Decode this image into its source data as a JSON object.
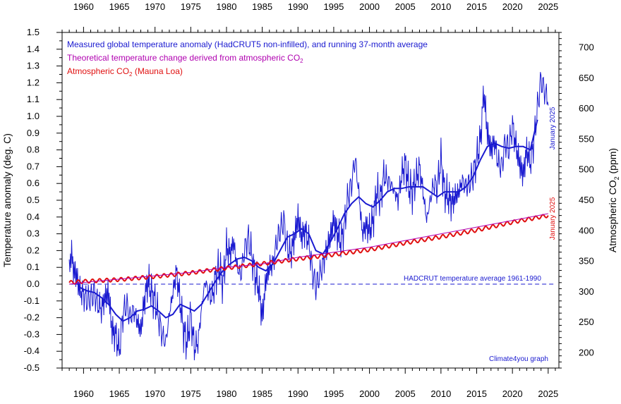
{
  "chart_data": {
    "type": "line",
    "x_label_ticks": [
      "1960",
      "1965",
      "1970",
      "1975",
      "1980",
      "1985",
      "1990",
      "1995",
      "2000",
      "2005",
      "2010",
      "2015",
      "2020",
      "2025"
    ],
    "xlim": [
      1957,
      2026.5
    ],
    "ylim_left": [
      -0.5,
      1.5
    ],
    "ylim_right": [
      175,
      725
    ],
    "yticks_left": [
      "-0.5",
      "-0.4",
      "-0.3",
      "-0.2",
      "-0.1",
      "0.0",
      "0.1",
      "0.2",
      "0.3",
      "0.4",
      "0.5",
      "0.6",
      "0.7",
      "0.8",
      "0.9",
      "1.0",
      "1.1",
      "1.2",
      "1.3",
      "1.4",
      "1.5"
    ],
    "yticks_right": [
      "200",
      "250",
      "300",
      "350",
      "400",
      "450",
      "500",
      "550",
      "600",
      "650",
      "700"
    ],
    "ylabel_left": "Temperature anomaly (deg. C)",
    "ylabel_right_main": "Atmospheric CO",
    "ylabel_right_sub": "2",
    "ylabel_right_unit": " (ppm)",
    "legend": [
      {
        "text": "Measured global temperature anomaly (HadCRUT5 non-infilled), and running 37-month average",
        "sub": "",
        "tail": "",
        "color": "#1a1ad0"
      },
      {
        "text": "Theoretical temperature change derived from atmospheric CO",
        "sub": "2",
        "tail": "",
        "color": "#b000b0"
      },
      {
        "text": "Atmospheric CO",
        "sub": "2",
        "tail": " (Mauna Loa)",
        "color": "#e01010"
      }
    ],
    "annotations": {
      "baseline": "HADCRUT temperature average 1961-1990",
      "credit": "Climate4you graph",
      "temp_end": "January 2025",
      "co2_end": "January 2025"
    },
    "colors": {
      "temp": "#1a1ad0",
      "co2": "#e01010",
      "theory": "#b000b0"
    },
    "series": [
      {
        "name": "Measured global temperature anomaly (HadCRUT5 non-infilled)",
        "axis": "left",
        "x": [
          1958.0,
          1958.3,
          1958.5,
          1959.0,
          1959.5,
          1960.0,
          1960.5,
          1961.0,
          1961.5,
          1962.0,
          1962.5,
          1963.0,
          1963.5,
          1964.0,
          1964.5,
          1965.0,
          1965.5,
          1966.0,
          1966.5,
          1967.0,
          1967.5,
          1968.0,
          1968.5,
          1969.0,
          1969.5,
          1970.0,
          1970.5,
          1971.0,
          1971.5,
          1972.0,
          1972.5,
          1973.0,
          1973.5,
          1974.0,
          1974.5,
          1975.0,
          1975.5,
          1976.0,
          1976.5,
          1977.0,
          1977.5,
          1978.0,
          1978.5,
          1979.0,
          1979.5,
          1980.0,
          1980.5,
          1981.0,
          1981.5,
          1982.0,
          1982.5,
          1983.0,
          1983.5,
          1984.0,
          1984.5,
          1985.0,
          1985.5,
          1986.0,
          1986.5,
          1987.0,
          1987.5,
          1988.0,
          1988.5,
          1989.0,
          1989.5,
          1990.0,
          1990.5,
          1991.0,
          1991.5,
          1992.0,
          1992.5,
          1993.0,
          1993.5,
          1994.0,
          1994.5,
          1995.0,
          1995.5,
          1996.0,
          1996.5,
          1997.0,
          1997.5,
          1998.0,
          1998.5,
          1999.0,
          1999.5,
          2000.0,
          2000.5,
          2001.0,
          2001.5,
          2002.0,
          2002.5,
          2003.0,
          2003.5,
          2004.0,
          2004.5,
          2005.0,
          2005.5,
          2006.0,
          2006.5,
          2007.0,
          2007.5,
          2008.0,
          2008.5,
          2009.0,
          2009.5,
          2010.0,
          2010.5,
          2011.0,
          2011.5,
          2012.0,
          2012.5,
          2013.0,
          2013.5,
          2014.0,
          2014.5,
          2015.0,
          2015.5,
          2016.0,
          2016.5,
          2017.0,
          2017.5,
          2018.0,
          2018.5,
          2019.0,
          2019.5,
          2020.0,
          2020.5,
          2021.0,
          2021.5,
          2022.0,
          2022.5,
          2023.0,
          2023.5,
          2024.0,
          2024.5,
          2025.0
        ],
        "values": [
          0.05,
          0.22,
          0.1,
          0.05,
          -0.04,
          -0.06,
          -0.1,
          -0.08,
          -0.05,
          -0.12,
          -0.15,
          -0.08,
          -0.05,
          -0.28,
          -0.3,
          -0.4,
          -0.18,
          -0.12,
          -0.2,
          -0.15,
          -0.22,
          -0.28,
          -0.1,
          0.02,
          -0.05,
          -0.1,
          -0.2,
          -0.3,
          -0.35,
          -0.18,
          -0.05,
          0.08,
          -0.1,
          -0.28,
          -0.35,
          -0.18,
          -0.38,
          -0.35,
          -0.15,
          0.02,
          -0.05,
          -0.08,
          0.05,
          0.1,
          0.0,
          0.22,
          0.18,
          0.25,
          0.1,
          0.05,
          0.2,
          0.28,
          0.18,
          0.05,
          -0.02,
          -0.2,
          0.02,
          0.1,
          0.12,
          0.25,
          0.32,
          0.38,
          0.22,
          0.18,
          0.28,
          0.4,
          0.28,
          0.32,
          0.25,
          0.08,
          -0.02,
          0.05,
          0.12,
          0.2,
          0.28,
          0.38,
          0.3,
          0.25,
          0.35,
          0.52,
          0.6,
          0.75,
          0.55,
          0.3,
          0.35,
          0.32,
          0.38,
          0.55,
          0.5,
          0.65,
          0.62,
          0.6,
          0.55,
          0.5,
          0.65,
          0.72,
          0.58,
          0.55,
          0.62,
          0.7,
          0.55,
          0.38,
          0.5,
          0.6,
          0.58,
          0.75,
          0.55,
          0.52,
          0.48,
          0.52,
          0.55,
          0.62,
          0.58,
          0.6,
          0.65,
          0.75,
          0.85,
          1.15,
          0.9,
          0.8,
          0.85,
          0.72,
          0.7,
          0.85,
          0.8,
          0.95,
          0.82,
          0.72,
          0.65,
          0.8,
          0.72,
          0.85,
          1.05,
          1.22,
          1.15,
          1.1
        ],
        "style": "monthly"
      },
      {
        "name": "Running 37-month average",
        "axis": "left",
        "x": [
          1959.5,
          1960.5,
          1961.5,
          1962.5,
          1963.5,
          1964.5,
          1965.5,
          1966.5,
          1967.5,
          1968.5,
          1969.5,
          1970.5,
          1971.5,
          1972.5,
          1973.5,
          1974.5,
          1975.5,
          1976.5,
          1977.5,
          1978.5,
          1979.5,
          1980.5,
          1981.5,
          1982.5,
          1983.5,
          1984.5,
          1985.5,
          1986.5,
          1987.5,
          1988.5,
          1989.5,
          1990.5,
          1991.5,
          1992.5,
          1993.5,
          1994.5,
          1995.5,
          1996.5,
          1997.5,
          1998.5,
          1999.5,
          2000.5,
          2001.5,
          2002.5,
          2003.5,
          2004.5,
          2005.5,
          2006.5,
          2007.5,
          2008.5,
          2009.5,
          2010.5,
          2011.5,
          2012.5,
          2013.5,
          2014.5,
          2015.5,
          2016.5,
          2017.5,
          2018.5,
          2019.5,
          2020.5,
          2021.5,
          2022.5,
          2023.5
        ],
        "values": [
          -0.02,
          -0.04,
          -0.05,
          -0.08,
          -0.12,
          -0.18,
          -0.22,
          -0.2,
          -0.16,
          -0.15,
          -0.13,
          -0.16,
          -0.2,
          -0.18,
          -0.12,
          -0.14,
          -0.16,
          -0.12,
          -0.05,
          0.02,
          0.08,
          0.12,
          0.15,
          0.16,
          0.14,
          0.1,
          0.08,
          0.12,
          0.2,
          0.28,
          0.3,
          0.33,
          0.3,
          0.2,
          0.18,
          0.25,
          0.33,
          0.42,
          0.48,
          0.52,
          0.48,
          0.46,
          0.5,
          0.55,
          0.57,
          0.57,
          0.58,
          0.58,
          0.58,
          0.55,
          0.52,
          0.55,
          0.55,
          0.55,
          0.58,
          0.64,
          0.74,
          0.82,
          0.84,
          0.82,
          0.81,
          0.82,
          0.82,
          0.8,
          0.98
        ],
        "style": "average"
      },
      {
        "name": "Atmospheric CO2 (Mauna Loa)",
        "axis": "right",
        "x": [
          1958,
          1960,
          1965,
          1970,
          1975,
          1980,
          1985,
          1990,
          1995,
          2000,
          2005,
          2010,
          2015,
          2020,
          2025
        ],
        "values": [
          315,
          317,
          320,
          325,
          331,
          339,
          346,
          354,
          361,
          369,
          380,
          390,
          401,
          414,
          425
        ]
      },
      {
        "name": "Theoretical temperature change derived from atmospheric CO2",
        "axis": "left",
        "x": [
          1958,
          1960,
          1965,
          1970,
          1975,
          1980,
          1985,
          1990,
          1995,
          2000,
          2005,
          2010,
          2015,
          2020,
          2025
        ],
        "values": [
          0.0,
          0.01,
          0.03,
          0.05,
          0.07,
          0.1,
          0.12,
          0.16,
          0.19,
          0.22,
          0.26,
          0.3,
          0.34,
          0.38,
          0.42
        ]
      }
    ]
  }
}
